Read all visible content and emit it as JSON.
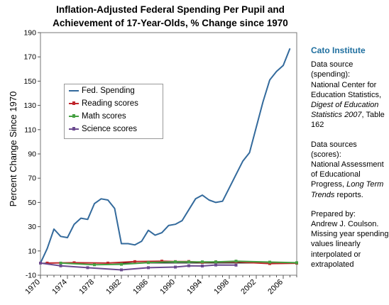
{
  "title_line1": "Inflation-Adjusted Federal Spending Per Pupil and",
  "title_line2": "Achievement of 17-Year-Olds, % Change since 1970",
  "ylabel": "Percent Change Since 1970",
  "sidebar": {
    "org": "Cato Institute",
    "spending_source_label": "Data source (spending):",
    "spending_source_text_a": "National Center for Education Statistics, ",
    "spending_source_italic": "Digest of Education Statistics 2007",
    "spending_source_text_b": ", Table 162",
    "scores_source_label": "Data sources (scores):",
    "scores_source_text_a": "National Assessment of Educational Progress, ",
    "scores_source_italic": "Long Term Trends",
    "scores_source_text_b": " reports.",
    "prepared_label": "Prepared by:",
    "prepared_name": "Andrew J. Coulson.",
    "prepared_note": "Missing year spending values linearly interpolated or extrapolated"
  },
  "colors": {
    "spending": "#336a9c",
    "reading": "#c0262c",
    "math": "#45a042",
    "science": "#6b4a8f"
  },
  "chart_data": {
    "type": "line",
    "title": "Inflation-Adjusted Federal Spending Per Pupil and Achievement of 17-Year-Olds, % Change since 1970",
    "ylabel": "Percent Change Since 1970",
    "xlabel": "",
    "ylim": [
      -10,
      190
    ],
    "yticks": [
      -10,
      10,
      30,
      50,
      70,
      90,
      110,
      130,
      150,
      170,
      190
    ],
    "xlim": [
      1970,
      2008
    ],
    "xticks": [
      1970,
      1974,
      1978,
      1982,
      1986,
      1990,
      1994,
      1998,
      2002,
      2006
    ],
    "grid": false,
    "legend": "upper-left",
    "series": [
      {
        "name": "Fed. Spending",
        "color": "#336a9c",
        "x": [
          1970,
          1971,
          1972,
          1973,
          1974,
          1975,
          1976,
          1977,
          1978,
          1979,
          1980,
          1981,
          1982,
          1983,
          1984,
          1985,
          1986,
          1987,
          1988,
          1989,
          1990,
          1991,
          1992,
          1993,
          1994,
          1995,
          1996,
          1997,
          1998,
          1999,
          2000,
          2001,
          2002,
          2003,
          2004,
          2005,
          2006,
          2007
        ],
        "values": [
          0,
          12,
          28,
          22,
          21,
          32,
          37,
          36,
          49,
          53,
          52,
          45,
          16,
          16,
          15,
          18,
          27,
          23,
          25,
          31,
          32,
          35,
          44,
          53,
          56,
          52,
          50,
          51,
          62,
          73,
          84,
          91,
          112,
          133,
          151,
          158,
          163,
          177
        ]
      },
      {
        "name": "Reading scores",
        "color": "#c0262c",
        "x": [
          1971,
          1975,
          1980,
          1984,
          1988,
          1990,
          1992,
          1994,
          1996,
          1999,
          2004,
          2008
        ],
        "values": [
          0,
          0.3,
          0.0,
          1.2,
          1.6,
          1.2,
          1.3,
          0.5,
          1.0,
          1.0,
          -0.4,
          -0.1
        ]
      },
      {
        "name": "Math scores",
        "color": "#45a042",
        "x": [
          1973,
          1978,
          1982,
          1986,
          1990,
          1992,
          1994,
          1996,
          1999,
          2004,
          2008
        ],
        "values": [
          0,
          -1.4,
          -1.0,
          0.4,
          1.1,
          1.0,
          1.0,
          1.0,
          1.6,
          0.8,
          0.3
        ]
      },
      {
        "name": "Science scores",
        "color": "#6b4a8f",
        "x": [
          1970,
          1973,
          1977,
          1982,
          1986,
          1990,
          1992,
          1994,
          1996,
          1999
        ],
        "values": [
          0,
          -2.3,
          -3.8,
          -5.6,
          -3.8,
          -3.3,
          -2.2,
          -2.4,
          -1.6,
          -1.7
        ]
      }
    ]
  }
}
